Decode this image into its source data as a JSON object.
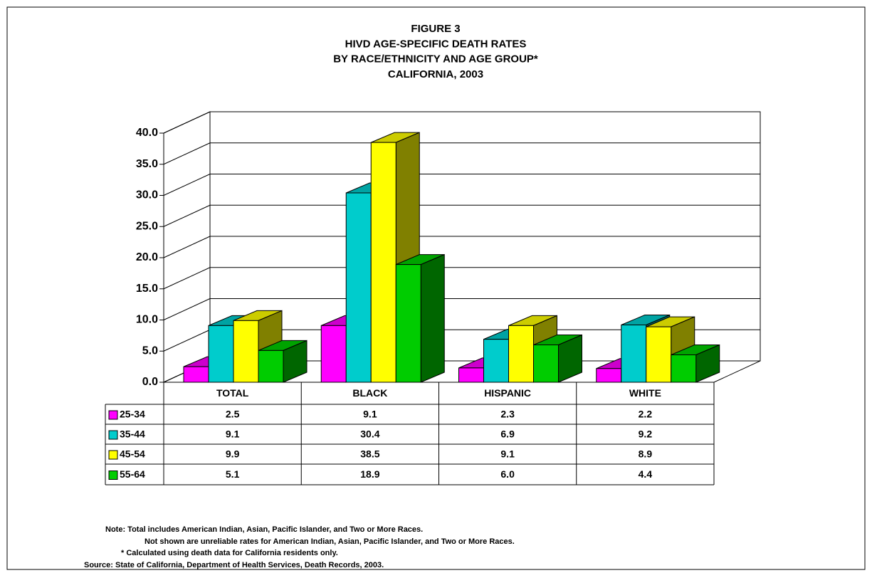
{
  "chart_data": {
    "type": "bar3d",
    "title": [
      "FIGURE 3",
      "HIVD AGE-SPECIFIC DEATH RATES",
      "BY RACE/ETHNICITY AND AGE GROUP*",
      "CALIFORNIA, 2003"
    ],
    "categories": [
      "TOTAL",
      "BLACK",
      "HISPANIC",
      "WHITE"
    ],
    "series": [
      {
        "name": "25-34",
        "color": "#ff00ff",
        "values": [
          2.5,
          9.1,
          2.3,
          2.2
        ],
        "value_labels": [
          "2.5",
          "9.1",
          "2.3",
          "2.2"
        ]
      },
      {
        "name": "35-44",
        "color": "#00cccc",
        "values": [
          9.1,
          30.4,
          6.9,
          9.2
        ],
        "value_labels": [
          "9.1",
          "30.4",
          "6.9",
          "9.2"
        ]
      },
      {
        "name": "45-54",
        "color": "#ffff00",
        "values": [
          9.9,
          38.5,
          9.1,
          8.9
        ],
        "value_labels": [
          "9.9",
          "38.5",
          "9.1",
          "8.9"
        ]
      },
      {
        "name": "55-64",
        "color": "#00cc00",
        "values": [
          5.1,
          18.9,
          6.0,
          4.4
        ],
        "value_labels": [
          "5.1",
          "18.9",
          "6.0",
          "4.4"
        ]
      }
    ],
    "ylim": [
      0,
      40
    ],
    "yticks": [
      {
        "value": 0,
        "label": "0.0"
      },
      {
        "value": 5,
        "label": "5.0"
      },
      {
        "value": 10,
        "label": "10.0"
      },
      {
        "value": 15,
        "label": "15.0"
      },
      {
        "value": 20,
        "label": "20.0"
      },
      {
        "value": 25,
        "label": "25.0"
      },
      {
        "value": 30,
        "label": "30.0"
      },
      {
        "value": 35,
        "label": "35.0"
      },
      {
        "value": 40,
        "label": "40.0"
      }
    ],
    "grid": true,
    "notes": [
      "Note:  Total includes American Indian, Asian, Pacific Islander, and Two or More Races.",
      "Not shown are unreliable rates for American Indian, Asian, Pacific Islander, and Two or More Races.",
      "*  Calculated using death data for California residents only.",
      "Source:  State of California, Department of Health Services, Death Records, 2003."
    ]
  }
}
